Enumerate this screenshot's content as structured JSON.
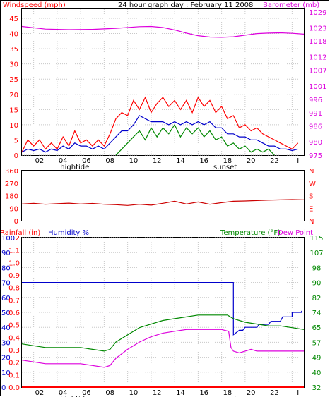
{
  "colors": {
    "red": "#ff0000",
    "darkred": "#cc0000",
    "magenta": "#dd00dd",
    "blue": "#0000cc",
    "green": "#008800",
    "frame": "#000000",
    "grid": "#c8c8c8"
  },
  "chart_data": [
    {
      "type": "line",
      "title": "24 hour graph day : February 11 2008",
      "left_axis_label": "Windspeed (mph)",
      "right_axis_label": "Barometer (mb)",
      "x_ticks": [
        "02",
        "04",
        "06",
        "08",
        "10",
        "12",
        "14",
        "16",
        "18",
        "20",
        "22",
        "I"
      ],
      "x_annotations": [
        {
          "label": "hightide",
          "x": 4.5
        },
        {
          "label": "sunset",
          "x": 17.3
        }
      ],
      "left_ticks": [
        "0",
        "5",
        "10",
        "15",
        "20",
        "25",
        "30",
        "35",
        "40",
        "45"
      ],
      "right_ticks": [
        "975",
        "980",
        "986",
        "991",
        "996",
        "1001",
        "1007",
        "1012",
        "1018",
        "1023",
        "1029"
      ],
      "ylim_left": [
        0,
        48
      ],
      "ylim_right": [
        975,
        1030
      ],
      "xlim": [
        0,
        24
      ],
      "series": [
        {
          "color": "red",
          "points": [
            [
              0,
              1
            ],
            [
              0.5,
              5
            ],
            [
              1,
              3
            ],
            [
              1.5,
              5
            ],
            [
              2,
              2
            ],
            [
              2.5,
              4
            ],
            [
              3,
              2
            ],
            [
              3.5,
              6
            ],
            [
              4,
              3
            ],
            [
              4.5,
              8
            ],
            [
              5,
              4
            ],
            [
              5.5,
              5
            ],
            [
              6,
              3
            ],
            [
              6.5,
              5
            ],
            [
              7,
              3
            ],
            [
              7.5,
              7
            ],
            [
              8,
              12
            ],
            [
              8.5,
              14
            ],
            [
              9,
              13
            ],
            [
              9.5,
              18
            ],
            [
              10,
              15
            ],
            [
              10.5,
              19
            ],
            [
              11,
              14
            ],
            [
              11.5,
              17
            ],
            [
              12,
              19
            ],
            [
              12.5,
              16
            ],
            [
              13,
              18
            ],
            [
              13.5,
              15
            ],
            [
              14,
              18
            ],
            [
              14.5,
              14
            ],
            [
              15,
              19
            ],
            [
              15.5,
              16
            ],
            [
              16,
              18
            ],
            [
              16.5,
              14
            ],
            [
              17,
              16
            ],
            [
              17.5,
              12
            ],
            [
              18,
              13
            ],
            [
              18.5,
              9
            ],
            [
              19,
              10
            ],
            [
              19.5,
              8
            ],
            [
              20,
              9
            ],
            [
              20.5,
              7
            ],
            [
              21,
              6
            ],
            [
              21.5,
              5
            ],
            [
              22,
              4
            ],
            [
              22.5,
              3
            ],
            [
              23,
              2
            ],
            [
              23.5,
              4
            ]
          ]
        },
        {
          "color": "blue",
          "points": [
            [
              0,
              1
            ],
            [
              0.5,
              2
            ],
            [
              1,
              1.5
            ],
            [
              1.5,
              2
            ],
            [
              2,
              1
            ],
            [
              2.5,
              2
            ],
            [
              3,
              1.5
            ],
            [
              3.5,
              3
            ],
            [
              4,
              2
            ],
            [
              4.5,
              4
            ],
            [
              5,
              3
            ],
            [
              5.5,
              3
            ],
            [
              6,
              2
            ],
            [
              6.5,
              3
            ],
            [
              7,
              2
            ],
            [
              7.5,
              4
            ],
            [
              8,
              6
            ],
            [
              8.5,
              8
            ],
            [
              9,
              8
            ],
            [
              9.5,
              10
            ],
            [
              10,
              13
            ],
            [
              10.5,
              12
            ],
            [
              11,
              11
            ],
            [
              11.5,
              11
            ],
            [
              12,
              11
            ],
            [
              12.5,
              10
            ],
            [
              13,
              11
            ],
            [
              13.5,
              10
            ],
            [
              14,
              11
            ],
            [
              14.5,
              10
            ],
            [
              15,
              11
            ],
            [
              15.5,
              10
            ],
            [
              16,
              11
            ],
            [
              16.5,
              9
            ],
            [
              17,
              9
            ],
            [
              17.5,
              7
            ],
            [
              18,
              7
            ],
            [
              18.5,
              6
            ],
            [
              19,
              6
            ],
            [
              19.5,
              5
            ],
            [
              20,
              5
            ],
            [
              20.5,
              4
            ],
            [
              21,
              3
            ],
            [
              21.5,
              3
            ],
            [
              22,
              2
            ],
            [
              22.5,
              2
            ],
            [
              23,
              1.5
            ],
            [
              23.5,
              2
            ]
          ]
        },
        {
          "color": "green",
          "points": [
            [
              8,
              0
            ],
            [
              8.5,
              2
            ],
            [
              9,
              4
            ],
            [
              9.5,
              6
            ],
            [
              10,
              8
            ],
            [
              10.5,
              5
            ],
            [
              11,
              9
            ],
            [
              11.5,
              6
            ],
            [
              12,
              9
            ],
            [
              12.5,
              7
            ],
            [
              13,
              10
            ],
            [
              13.5,
              6
            ],
            [
              14,
              9
            ],
            [
              14.5,
              7
            ],
            [
              15,
              9
            ],
            [
              15.5,
              6
            ],
            [
              16,
              8
            ],
            [
              16.5,
              5
            ],
            [
              17,
              6
            ],
            [
              17.5,
              3
            ],
            [
              18,
              4
            ],
            [
              18.5,
              2
            ],
            [
              19,
              3
            ],
            [
              19.5,
              1
            ],
            [
              20,
              2
            ],
            [
              20.5,
              1
            ],
            [
              21,
              2
            ],
            [
              21.5,
              0
            ]
          ]
        },
        {
          "color": "magenta",
          "axis": "right",
          "points": [
            [
              0,
              1023.5
            ],
            [
              2,
              1022.5
            ],
            [
              4,
              1022.3
            ],
            [
              6,
              1022.4
            ],
            [
              8,
              1022.8
            ],
            [
              10,
              1023.4
            ],
            [
              11,
              1023.5
            ],
            [
              12,
              1023.1
            ],
            [
              13,
              1022.2
            ],
            [
              14,
              1021
            ],
            [
              15,
              1020
            ],
            [
              16,
              1019.5
            ],
            [
              17,
              1019.4
            ],
            [
              18,
              1019.6
            ],
            [
              19,
              1020.2
            ],
            [
              20,
              1020.8
            ],
            [
              21,
              1021
            ],
            [
              22,
              1021.1
            ],
            [
              23,
              1020.9
            ],
            [
              24,
              1020.6
            ]
          ]
        }
      ]
    },
    {
      "type": "line",
      "title": "",
      "left_ticks": [
        "0",
        "90",
        "180",
        "270",
        "360"
      ],
      "right_ticks": [
        "N",
        "W",
        "S",
        "E",
        "N"
      ],
      "ylim": [
        0,
        360
      ],
      "xlim": [
        0,
        24
      ],
      "series": [
        {
          "color": "darkred",
          "points": [
            [
              0,
              120
            ],
            [
              1,
              125
            ],
            [
              2,
              118
            ],
            [
              3,
              122
            ],
            [
              4,
              126
            ],
            [
              5,
              120
            ],
            [
              6,
              124
            ],
            [
              7,
              118
            ],
            [
              8,
              115
            ],
            [
              9,
              110
            ],
            [
              10,
              118
            ],
            [
              11,
              112
            ],
            [
              12,
              125
            ],
            [
              13,
              140
            ],
            [
              14,
              120
            ],
            [
              15,
              135
            ],
            [
              16,
              118
            ],
            [
              17,
              130
            ],
            [
              18,
              140
            ],
            [
              19,
              142
            ],
            [
              20,
              145
            ],
            [
              21,
              148
            ],
            [
              22,
              150
            ],
            [
              23,
              152
            ],
            [
              24,
              150
            ]
          ]
        }
      ]
    },
    {
      "type": "line",
      "left_axis_label": "Rainfall (in)",
      "mid_axis_label": "Humidity %",
      "right_axis_label": "Temperature (°F)",
      "right_axis_label2": "Dew Point",
      "x_ticks": [
        "02",
        "04",
        "06",
        "08",
        "10",
        "12",
        "14",
        "16",
        "18",
        "20",
        "22",
        "I"
      ],
      "x_annotations": [
        {
          "label": "hightide",
          "x": 4.5
        },
        {
          "label": "sunset",
          "x": 17.3
        }
      ],
      "humidity_ticks": [
        "0",
        "10",
        "20",
        "30",
        "40",
        "50",
        "60",
        "70",
        "80",
        "90",
        "100"
      ],
      "rain_ticks": [
        "0.0",
        "0.1",
        "0.2",
        "0.3",
        "0.4",
        "0.5",
        "0.6",
        "0.7",
        "0.8",
        "0.9",
        "1.0",
        "1.1",
        "1.2"
      ],
      "temp_ticks": [
        "32",
        "40",
        "49",
        "57",
        "65",
        "74",
        "82",
        "90",
        "98",
        "107",
        "115"
      ],
      "ylim_humidity": [
        0,
        100
      ],
      "ylim_temp": [
        32,
        115
      ],
      "xlim": [
        0,
        24
      ],
      "series": [
        {
          "color": "blue",
          "axis": "humidity",
          "points": [
            [
              0,
              70
            ],
            [
              18,
              70
            ],
            [
              18,
              35
            ],
            [
              18.5,
              38
            ],
            [
              18.8,
              38
            ],
            [
              19,
              40
            ],
            [
              20,
              40
            ],
            [
              20.2,
              42
            ],
            [
              21,
              42
            ],
            [
              21.2,
              44
            ],
            [
              22,
              44
            ],
            [
              22.2,
              47
            ],
            [
              23,
              47
            ],
            [
              23,
              50
            ],
            [
              23.8,
              50
            ],
            [
              23.8,
              51
            ]
          ]
        },
        {
          "color": "green",
          "axis": "temp",
          "points": [
            [
              0,
              56
            ],
            [
              1,
              55
            ],
            [
              2,
              54
            ],
            [
              3,
              54
            ],
            [
              4,
              54
            ],
            [
              5,
              54
            ],
            [
              6,
              53
            ],
            [
              7,
              52
            ],
            [
              7.5,
              53
            ],
            [
              8,
              57
            ],
            [
              9,
              61
            ],
            [
              10,
              65
            ],
            [
              11,
              67
            ],
            [
              12,
              69
            ],
            [
              13,
              70
            ],
            [
              14,
              71
            ],
            [
              15,
              72
            ],
            [
              16,
              72
            ],
            [
              17,
              72
            ],
            [
              17.5,
              72
            ],
            [
              18,
              70
            ],
            [
              19,
              68
            ],
            [
              20,
              67
            ],
            [
              21,
              66
            ],
            [
              22,
              66
            ],
            [
              23,
              65
            ],
            [
              24,
              64
            ]
          ]
        },
        {
          "color": "magenta",
          "axis": "temp",
          "points": [
            [
              0,
              47
            ],
            [
              1,
              46
            ],
            [
              2,
              45
            ],
            [
              3,
              45
            ],
            [
              4,
              45
            ],
            [
              5,
              45
            ],
            [
              6,
              44
            ],
            [
              7,
              43
            ],
            [
              7.5,
              44
            ],
            [
              8,
              48
            ],
            [
              9,
              53
            ],
            [
              10,
              57
            ],
            [
              11,
              60
            ],
            [
              12,
              62
            ],
            [
              13,
              63
            ],
            [
              14,
              64
            ],
            [
              15,
              64
            ],
            [
              16,
              64
            ],
            [
              17,
              64
            ],
            [
              17.6,
              63
            ],
            [
              17.8,
              54
            ],
            [
              18,
              52
            ],
            [
              18.5,
              51
            ],
            [
              19,
              52
            ],
            [
              19.5,
              53
            ],
            [
              20,
              52
            ],
            [
              21,
              52
            ],
            [
              22,
              52
            ],
            [
              23,
              52
            ],
            [
              24,
              52
            ]
          ]
        },
        {
          "color": "red",
          "axis": "rain",
          "points": [
            [
              0,
              0
            ],
            [
              24,
              0
            ]
          ]
        }
      ]
    }
  ]
}
